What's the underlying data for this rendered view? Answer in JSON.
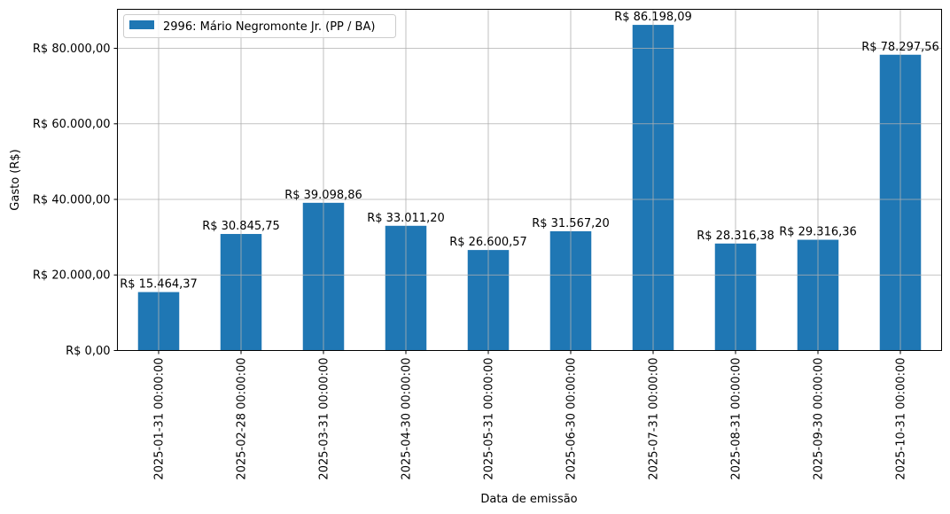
{
  "chart_data": {
    "type": "bar",
    "title": "",
    "xlabel": "Data de emissão",
    "ylabel": "Gasto (R$)",
    "ylim": [
      0,
      90322
    ],
    "grid": true,
    "legend_position": "upper left",
    "bar_color": "#1f77b4",
    "categories": [
      "2025-01-31 00:00:00",
      "2025-02-28 00:00:00",
      "2025-03-31 00:00:00",
      "2025-04-30 00:00:00",
      "2025-05-31 00:00:00",
      "2025-06-30 00:00:00",
      "2025-07-31 00:00:00",
      "2025-08-31 00:00:00",
      "2025-09-30 00:00:00",
      "2025-10-31 00:00:00"
    ],
    "series": [
      {
        "name": "2996: Mário Negromonte Jr. (PP / BA)",
        "values": [
          15464.37,
          30845.75,
          39098.86,
          33011.2,
          26600.57,
          31567.2,
          86198.09,
          28316.38,
          29316.36,
          78297.56
        ],
        "labels": [
          "R$ 15.464,37",
          "R$ 30.845,75",
          "R$ 39.098,86",
          "R$ 33.011,20",
          "R$ 26.600,57",
          "R$ 31.567,20",
          "R$ 86.198,09",
          "R$ 28.316,38",
          "R$ 29.316,36",
          "R$ 78.297,56"
        ]
      }
    ],
    "yticks": [
      0,
      20000,
      40000,
      60000,
      80000
    ],
    "ytick_labels": [
      "R$ 0,00",
      "R$ 20.000,00",
      "R$ 40.000,00",
      "R$ 60.000,00",
      "R$ 80.000,00"
    ]
  }
}
